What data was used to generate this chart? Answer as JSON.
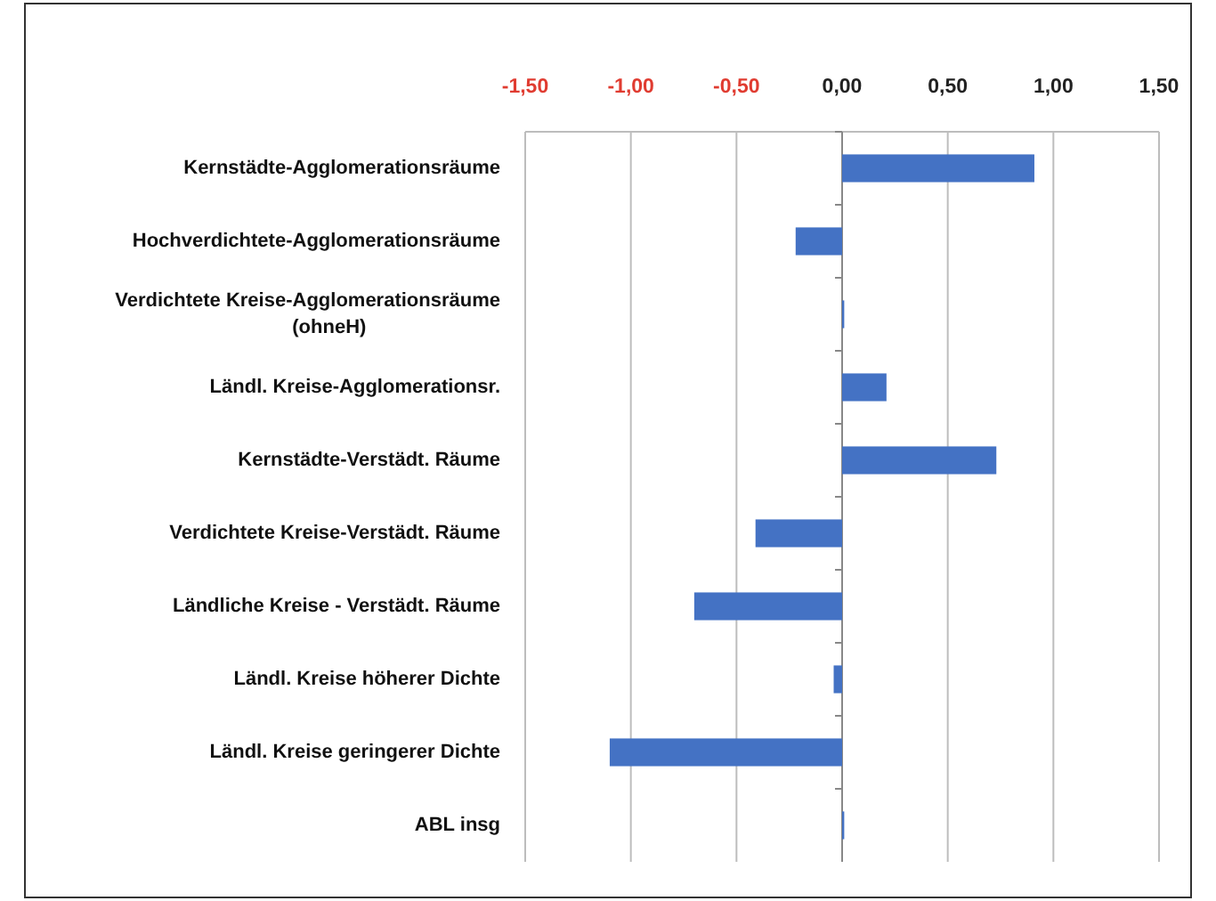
{
  "chart_data": {
    "type": "bar",
    "orientation": "horizontal",
    "categories": [
      "Kernstädte-Agglomerationsräume",
      "Hochverdichtete-Agglomerationsräume",
      "Verdichtete Kreise-Agglomerationsräume (ohneH)",
      "Ländl. Kreise-Agglomerationsr.",
      "Kernstädte-Verstädt. Räume",
      "Verdichtete Kreise-Verstädt. Räume",
      "Ländliche Kreise - Verstädt. Räume",
      "Ländl. Kreise höherer Dichte",
      "Ländl. Kreise geringerer Dichte",
      "ABL insg"
    ],
    "values": [
      0.91,
      -0.22,
      0.01,
      0.21,
      0.73,
      -0.41,
      -0.7,
      -0.04,
      -1.1,
      0.01
    ],
    "color": "#4472c4",
    "xlim": [
      -1.5,
      1.5
    ],
    "xticks": [
      {
        "value": -1.5,
        "label": "-1,50"
      },
      {
        "value": -1,
        "label": "-1,00"
      },
      {
        "value": -0.5,
        "label": "-0,50"
      },
      {
        "value": 0,
        "label": "0,00"
      },
      {
        "value": 0.5,
        "label": "0,50"
      },
      {
        "value": 1,
        "label": "1,00"
      },
      {
        "value": 1.5,
        "label": "1,50"
      }
    ],
    "grid": "x"
  }
}
